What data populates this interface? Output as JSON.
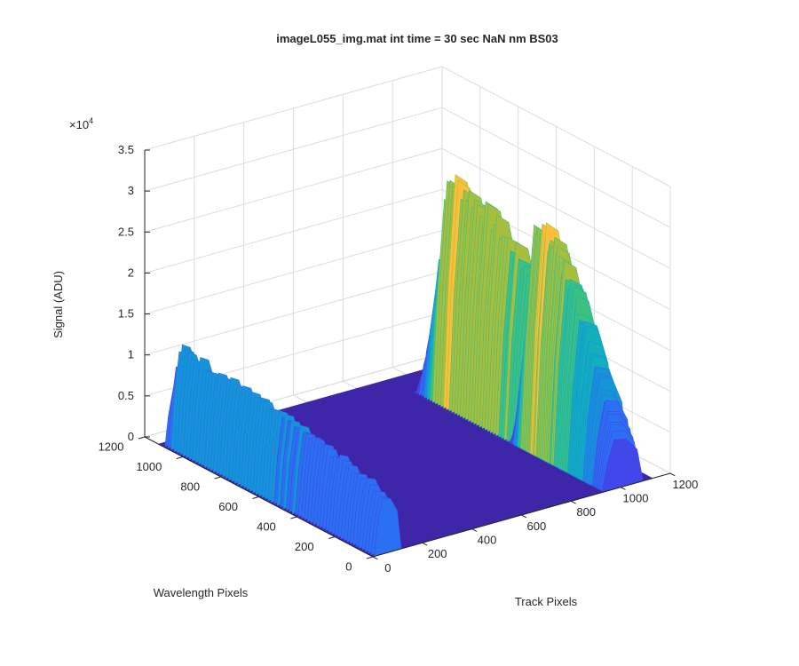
{
  "chart_data": {
    "type": "surface",
    "title": "imageL055_img.mat int time = 30 sec  NaN nm BS03",
    "xlabel": "Track Pixels",
    "ylabel": "Wavelength Pixels",
    "zlabel": "Signal (ADU)",
    "z_exponent_label": "×10",
    "z_exponent_power": "4",
    "xlim": [
      0,
      1200
    ],
    "ylim": [
      0,
      1200
    ],
    "zlim": [
      0,
      35000
    ],
    "x_ticks": [
      "0",
      "200",
      "400",
      "600",
      "800",
      "1000",
      "1200"
    ],
    "y_ticks": [
      "0",
      "200",
      "400",
      "600",
      "800",
      "1000",
      "1200"
    ],
    "z_ticks": [
      "0",
      "0.5",
      "1",
      "1.5",
      "2",
      "2.5",
      "3",
      "3.5"
    ],
    "grid": true,
    "colormap": "parula",
    "colors": [
      "#3e26a8",
      "#4247e9",
      "#2c70f2",
      "#1495d5",
      "#13b0bc",
      "#3ec17f",
      "#a6bd3d",
      "#fbbf39",
      "#f9e124"
    ],
    "ridges": [
      {
        "track_center": 60,
        "track_halfwidth": 55,
        "wavelength_start": 1100,
        "wavelength_end": 0,
        "peak_signal": 13000
      },
      {
        "track_center": 1010,
        "track_halfwidth": 80,
        "wavelength_start": 1000,
        "wavelength_end": 0,
        "peak_signal": 29500
      },
      {
        "track_center": 1010,
        "track_halfwidth": 80,
        "wavelength_start": 500,
        "wavelength_end": 0,
        "peak_signal": 30000
      }
    ]
  }
}
